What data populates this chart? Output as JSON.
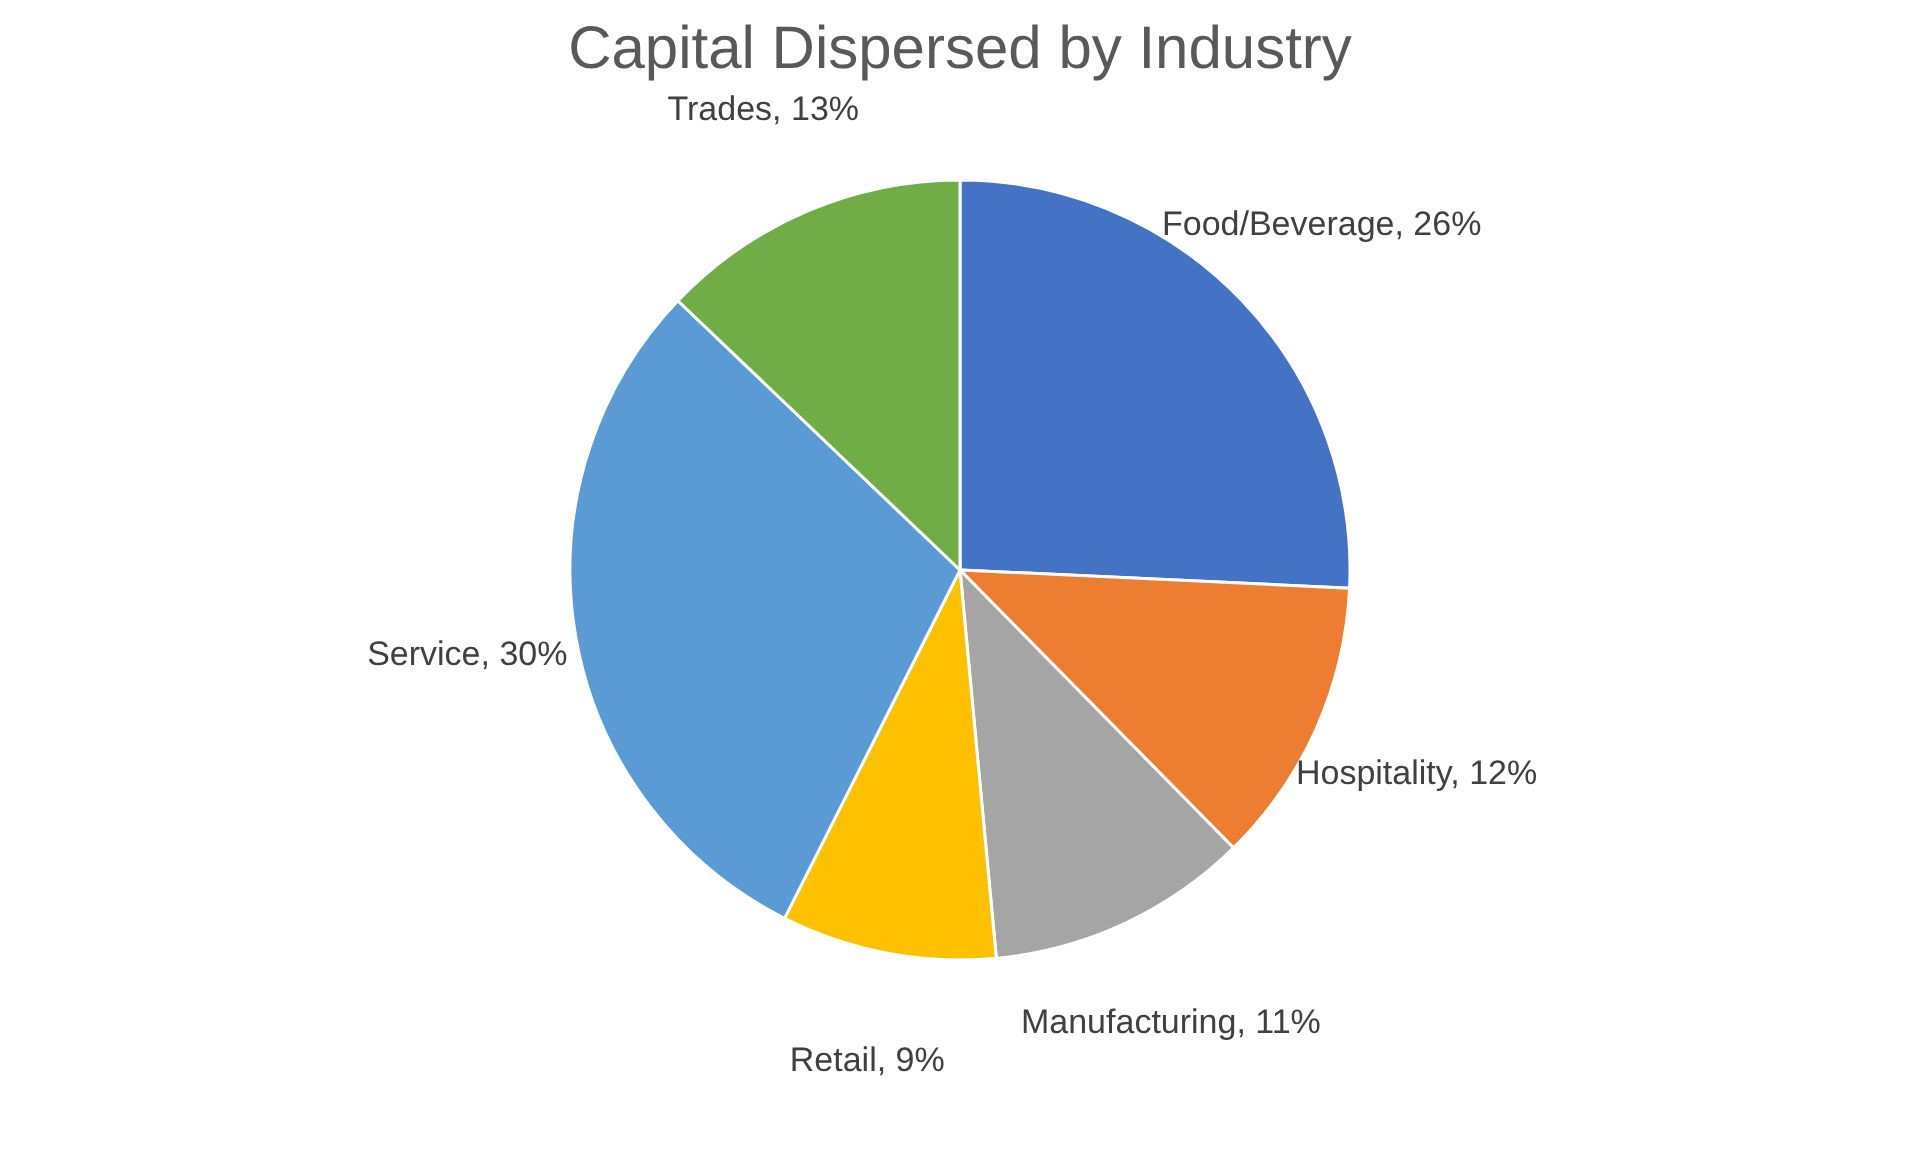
{
  "chart_data": {
    "type": "pie",
    "title": "Capital Dispersed by Industry",
    "categories": [
      "Food/Beverage",
      "Hospitality",
      "Manufacturing",
      "Retail",
      "Service",
      "Trades"
    ],
    "values": [
      26,
      12,
      11,
      9,
      30,
      13
    ],
    "colors": [
      "#4472c4",
      "#ed7d31",
      "#a5a5a5",
      "#ffc000",
      "#5b9bd5",
      "#70ad47"
    ],
    "value_labels": [
      "26%",
      "12%",
      "11%",
      "9%",
      "30%",
      "13%"
    ],
    "legend": false
  }
}
